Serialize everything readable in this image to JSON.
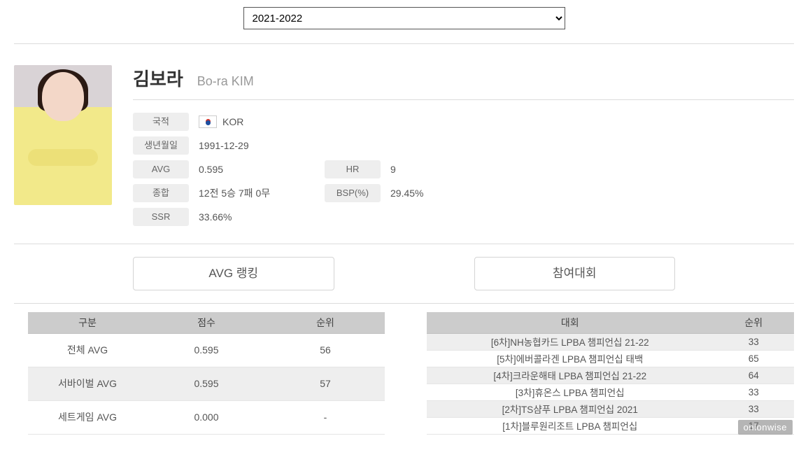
{
  "season": {
    "selected": "2021-2022",
    "options": [
      "2021-2022"
    ]
  },
  "player": {
    "name_kr": "김보라",
    "name_en": "Bo-ra KIM"
  },
  "labels": {
    "nationality": "국적",
    "birthdate": "생년월일",
    "avg": "AVG",
    "record": "종합",
    "ssr": "SSR",
    "hr": "HR",
    "bsp": "BSP(%)"
  },
  "stats": {
    "nationality": "KOR",
    "birthdate": "1991-12-29",
    "avg": "0.595",
    "record": "12전 5승 7패 0무",
    "ssr": "33.66%",
    "hr": "9",
    "bsp": "29.45%"
  },
  "tabs": {
    "avg_ranking": "AVG 랭킹",
    "tournaments": "참여대회"
  },
  "avg_table": {
    "headers": {
      "category": "구분",
      "score": "점수",
      "rank": "순위"
    },
    "rows": [
      {
        "category": "전체 AVG",
        "score": "0.595",
        "rank": "56"
      },
      {
        "category": "서바이벌 AVG",
        "score": "0.595",
        "rank": "57"
      },
      {
        "category": "세트게임 AVG",
        "score": "0.000",
        "rank": "-"
      }
    ]
  },
  "tour_table": {
    "headers": {
      "tournament": "대회",
      "rank": "순위"
    },
    "rows": [
      {
        "tournament": "[6차]NH농협카드 LPBA 챔피언십 21-22",
        "rank": "33"
      },
      {
        "tournament": "[5차]에버콜라겐 LPBA 챔피언십 태백",
        "rank": "65"
      },
      {
        "tournament": "[4차]크라운해태 LPBA 챔피언십 21-22",
        "rank": "64"
      },
      {
        "tournament": "[3차]휴온스 LPBA 챔피언십",
        "rank": "33"
      },
      {
        "tournament": "[2차]TS샴푸 LPBA 챔피언십 2021",
        "rank": "33"
      },
      {
        "tournament": "[1차]블루원리조트 LPBA 챔피언십",
        "rank": "17"
      }
    ]
  },
  "watermark": "onionwise",
  "colors": {
    "label_bg": "#eeeeee",
    "header_bg": "#cccccc",
    "stripe_bg": "#eeeeee",
    "border": "#dcdcdc",
    "text": "#555555"
  }
}
